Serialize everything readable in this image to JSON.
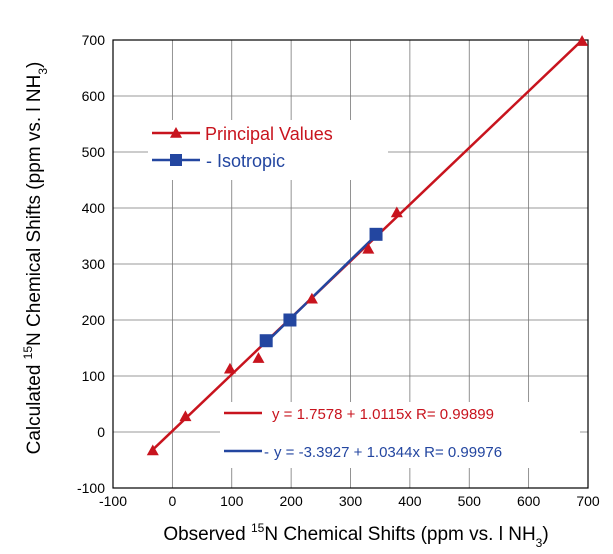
{
  "chart_data": {
    "type": "scatter",
    "xlabel": {
      "pre": "Observed ",
      "sup": "15",
      "mid": "N Chemical Shifts (ppm vs. l NH",
      "sub": "3",
      "post": ")"
    },
    "ylabel": {
      "pre": "Calculated ",
      "sup": "15",
      "mid": "N Chemical Shifts (ppm vs. l NH",
      "sub": "3",
      "post": ")"
    },
    "xlim": [
      -100,
      700
    ],
    "ylim": [
      -100,
      700
    ],
    "xticks": [
      -100,
      0,
      100,
      200,
      300,
      400,
      500,
      600,
      700
    ],
    "yticks": [
      -100,
      0,
      100,
      200,
      300,
      400,
      500,
      600,
      700
    ],
    "grid": true,
    "legend_position": "upper-left",
    "series": [
      {
        "name": "Principal Values",
        "marker": "triangle",
        "color": "#c8141e",
        "x": [
          -33,
          22,
          97,
          145,
          235,
          330,
          378,
          690
        ],
        "y": [
          -33,
          28,
          113,
          132,
          238,
          327,
          392,
          698
        ]
      },
      {
        "name": "Isotropic",
        "marker": "square",
        "color": "#2346a0",
        "x": [
          158,
          198,
          343
        ],
        "y": [
          163,
          200,
          353
        ]
      }
    ],
    "fits": [
      {
        "color": "#c8141e",
        "intercept": 1.7578,
        "slope": 1.0115,
        "x_range": [
          -33,
          690
        ],
        "label": "y = 1.7578 + 1.0115x   R= 0.99899"
      },
      {
        "color": "#2346a0",
        "intercept": -3.3927,
        "slope": 1.0344,
        "x_range": [
          158,
          343
        ],
        "label": "y = -3.3927 + 1.0344x   R= 0.99976"
      }
    ],
    "legend": [
      {
        "label": "Principal Values",
        "color": "#c8141e",
        "marker": "triangle"
      },
      {
        "label": "- Isotropic",
        "color": "#2346a0",
        "marker": "square"
      }
    ],
    "fit_legend": [
      {
        "prefix": "",
        "label": "y = 1.7578 + 1.0115x   R= 0.99899",
        "color": "#c8141e"
      },
      {
        "prefix": "- ",
        "label": "y = -3.3927 + 1.0344x   R= 0.99976",
        "color": "#2346a0"
      }
    ]
  }
}
